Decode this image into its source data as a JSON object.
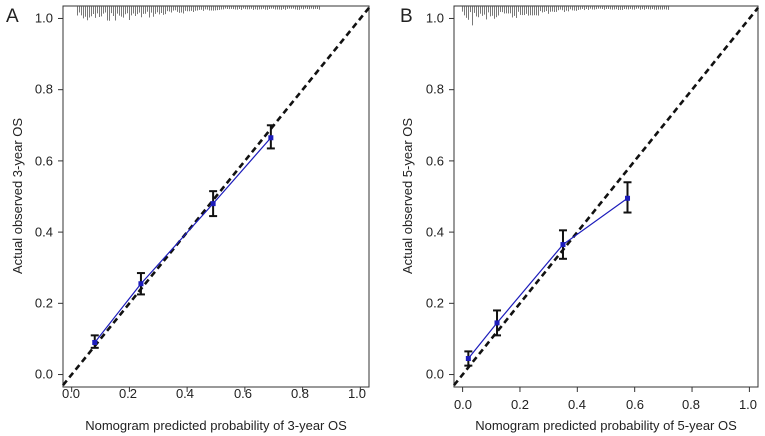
{
  "chart_data": [
    {
      "type": "line",
      "panel_label": "A",
      "xlabel": "Nomogram predicted probability of 3-year OS",
      "ylabel": "Actual observed 3-year OS",
      "xlim": [
        -0.03,
        1.03
      ],
      "ylim": [
        -0.035,
        1.035
      ],
      "x_ticks": [
        "0.0",
        "0.2",
        "0.4",
        "0.6",
        "0.8",
        "1.0"
      ],
      "y_ticks": [
        "0.0",
        "0.2",
        "0.4",
        "0.6",
        "0.8",
        "1.0"
      ],
      "reference_line": {
        "style": "dashed",
        "from": [
          -0.03,
          -0.03
        ],
        "to": [
          1.03,
          1.03
        ]
      },
      "series": [
        {
          "name": "calibration",
          "color": "#1c1cbb",
          "x": [
            0.08,
            0.24,
            0.49,
            0.69
          ],
          "y": [
            0.09,
            0.255,
            0.48,
            0.665
          ],
          "err_low": [
            0.075,
            0.225,
            0.445,
            0.635
          ],
          "err_high": [
            0.11,
            0.285,
            0.515,
            0.7
          ]
        }
      ],
      "rug": {
        "x_start": 0.02,
        "x_end": 0.86,
        "density": "dense"
      }
    },
    {
      "type": "line",
      "panel_label": "B",
      "xlabel": "Nomogram predicted probability of 5-year OS",
      "ylabel": "Actual observed 5-year OS",
      "xlim": [
        -0.03,
        1.03
      ],
      "ylim": [
        -0.035,
        1.035
      ],
      "x_ticks": [
        "0.0",
        "0.2",
        "0.4",
        "0.6",
        "0.8",
        "1.0"
      ],
      "y_ticks": [
        "0.0",
        "0.2",
        "0.4",
        "0.6",
        "0.8",
        "1.0"
      ],
      "reference_line": {
        "style": "dashed",
        "from": [
          -0.03,
          -0.03
        ],
        "to": [
          1.03,
          1.03
        ]
      },
      "series": [
        {
          "name": "calibration",
          "color": "#1c1cbb",
          "x": [
            0.02,
            0.12,
            0.35,
            0.575
          ],
          "y": [
            0.045,
            0.145,
            0.365,
            0.495
          ],
          "err_low": [
            0.025,
            0.11,
            0.325,
            0.455
          ],
          "err_high": [
            0.065,
            0.18,
            0.405,
            0.54
          ]
        }
      ],
      "rug": {
        "x_start": 0.0,
        "x_end": 0.72,
        "density": "dense"
      }
    }
  ]
}
